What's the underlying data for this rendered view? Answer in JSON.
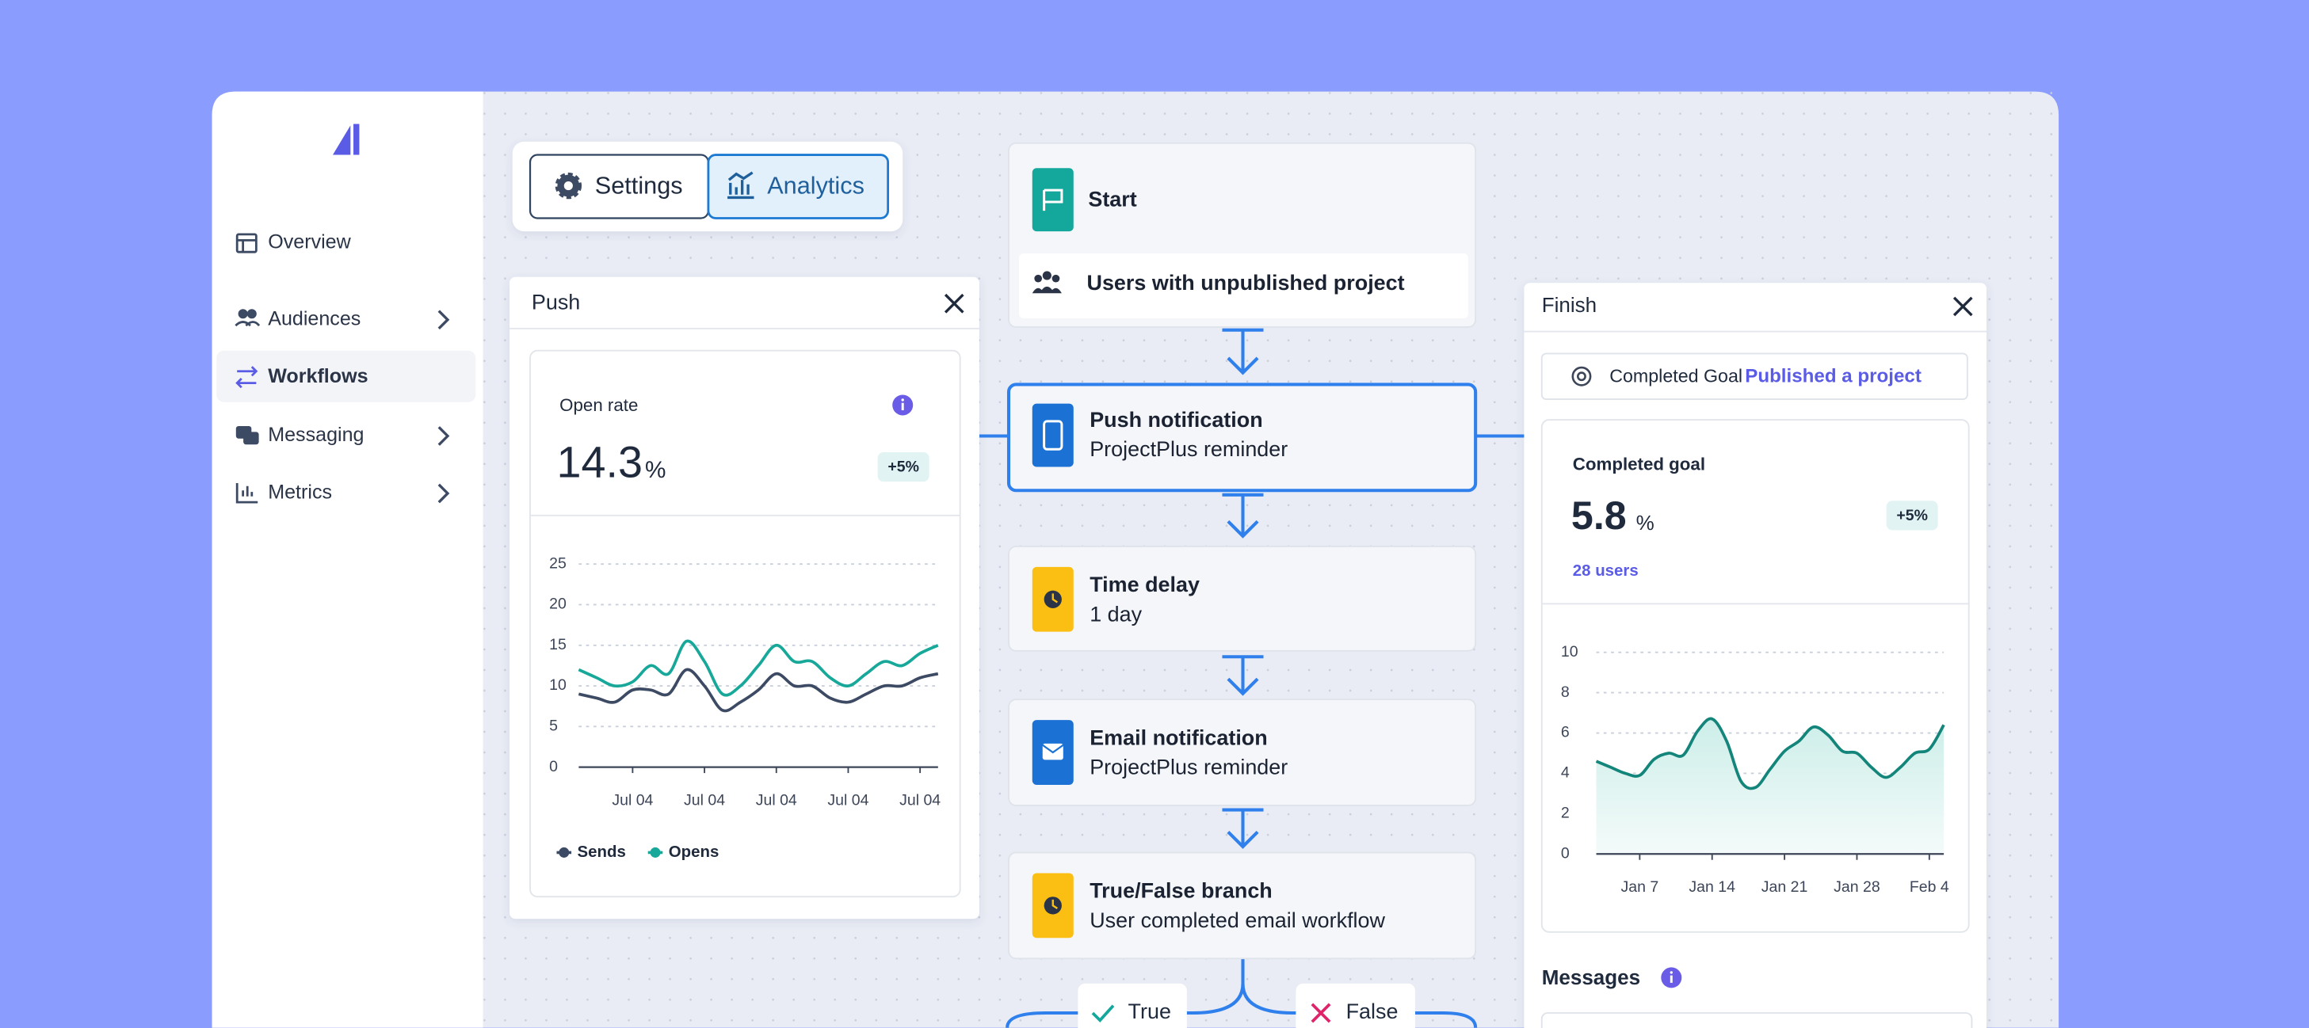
{
  "sidebar": {
    "nav": [
      "Overview",
      "Audiences",
      "Workflows",
      "Messaging",
      "Metrics"
    ]
  },
  "tabs": [
    "Settings",
    "Analytics"
  ],
  "push_panel": {
    "title": "Push",
    "metric_label": "Open rate",
    "metric_value": "14.3",
    "metric_unit": "%",
    "badge": "+5%",
    "chart": {
      "type": "line",
      "categories": [
        null,
        null,
        null,
        "Jul 04",
        null,
        null,
        null,
        "Jul 04",
        null,
        null,
        null,
        "Jul 04",
        null,
        null,
        null,
        "Jul 04",
        null,
        null,
        null,
        "Jul 04",
        null
      ],
      "ylim": [
        0,
        25
      ],
      "yticks": [
        0,
        5,
        10,
        15,
        20,
        25
      ],
      "grid": true,
      "series": [
        {
          "name": "Sends",
          "color": "#3d4a63",
          "values": [
            9,
            8.5,
            8,
            9.5,
            9.5,
            9,
            12,
            10,
            7,
            8,
            9.5,
            11.5,
            10,
            10,
            8.5,
            8,
            9,
            10,
            10,
            11,
            11.5
          ]
        },
        {
          "name": "Opens",
          "color": "#17a89a",
          "values": [
            12,
            11,
            10,
            10.5,
            12.5,
            11.5,
            15.5,
            13,
            9,
            10,
            12.5,
            15,
            13,
            13,
            11,
            10,
            11.5,
            13,
            12.5,
            14,
            15
          ]
        }
      ]
    }
  },
  "workflow": {
    "start": {
      "title": "Start",
      "trigger": "Users with unpublished project"
    },
    "steps": [
      {
        "title": "Push notification",
        "subtitle": "ProjectPlus reminder"
      },
      {
        "title": "Time delay",
        "subtitle": "1 day"
      },
      {
        "title": "Email notification",
        "subtitle": "ProjectPlus reminder"
      },
      {
        "title": "True/False branch",
        "subtitle": "User completed email workflow"
      }
    ],
    "branches": [
      "True",
      "False"
    ]
  },
  "finish_panel": {
    "title": "Finish",
    "goal_prefix": "Completed Goal",
    "goal": "Published a project",
    "metric_label": "Completed goal",
    "metric_value": "5.8",
    "metric_unit": "%",
    "badge": "+5%",
    "users": "28 users",
    "chart": {
      "type": "area",
      "color": "#13857a",
      "categories": [
        null,
        null,
        null,
        "Jan 7",
        null,
        null,
        null,
        null,
        "Jan 14",
        null,
        null,
        null,
        null,
        "Jan 21",
        null,
        null,
        null,
        null,
        "Jan 28",
        null,
        null,
        null,
        null,
        "Feb 4",
        null
      ],
      "ylim": [
        0,
        10
      ],
      "yticks": [
        0,
        2,
        4,
        6,
        8,
        10
      ],
      "grid": true,
      "values": [
        4.6,
        4.3,
        4.0,
        3.9,
        4.7,
        5.0,
        4.9,
        6.1,
        6.7,
        5.6,
        3.6,
        3.3,
        4.2,
        5.1,
        5.6,
        6.3,
        5.9,
        5.1,
        5.0,
        4.3,
        3.8,
        4.3,
        5.0,
        5.2,
        6.4
      ]
    },
    "messages": "Messages"
  }
}
